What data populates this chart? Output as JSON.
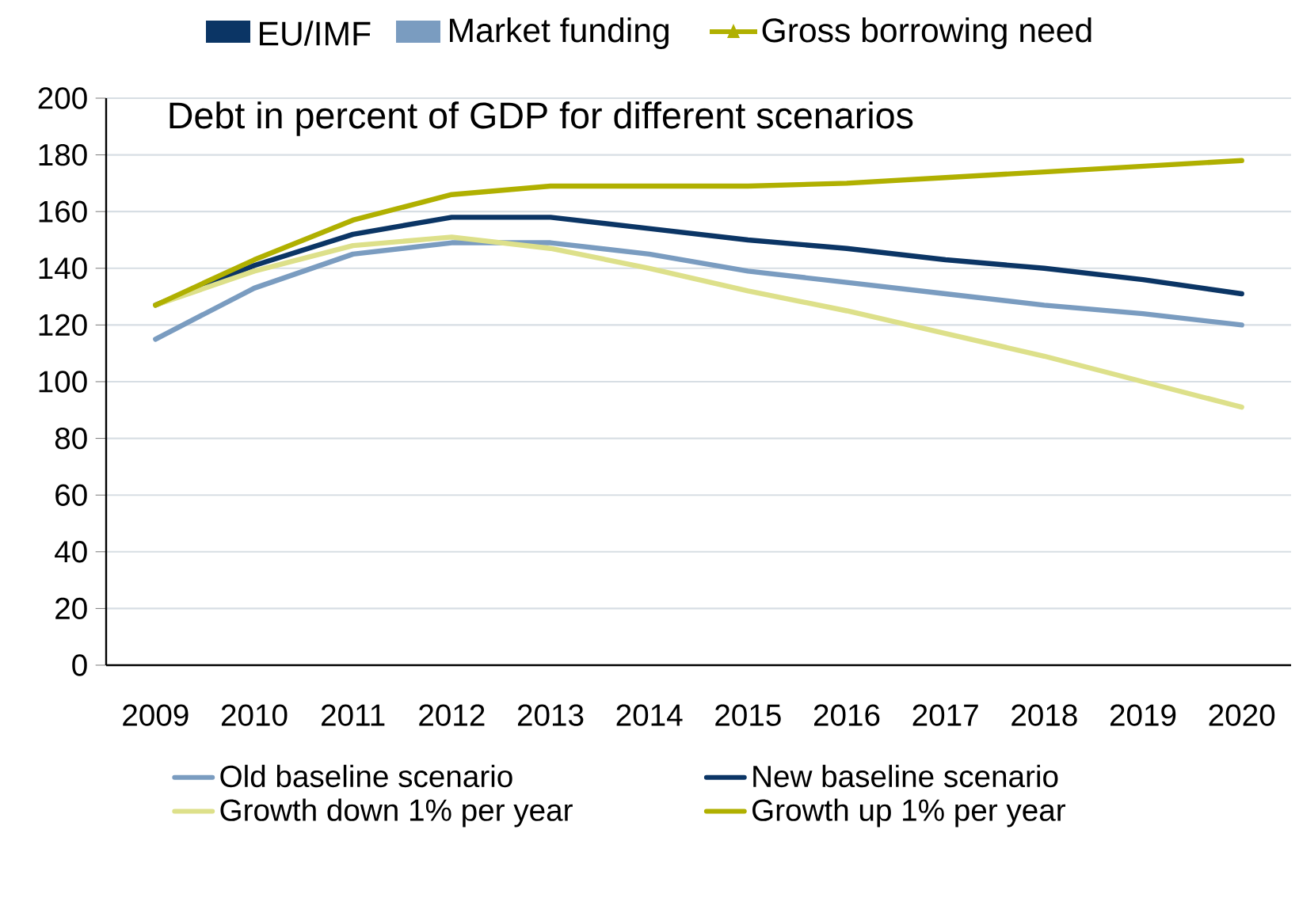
{
  "chart_data": {
    "type": "line",
    "title": "Debt in percent of GDP for different scenarios",
    "categories": [
      "2009",
      "2010",
      "2011",
      "2012",
      "2013",
      "2014",
      "2015",
      "2016",
      "2017",
      "2018",
      "2019",
      "2020"
    ],
    "series": [
      {
        "name": "Old baseline scenario",
        "color": "#7a9cc0",
        "values": [
          115,
          133,
          145,
          149,
          149,
          145,
          139,
          135,
          131,
          127,
          124,
          120
        ]
      },
      {
        "name": "New baseline scenario",
        "color": "#0b3565",
        "values": [
          127,
          141,
          152,
          158,
          158,
          154,
          150,
          147,
          143,
          140,
          136,
          131
        ]
      },
      {
        "name": "Growth down 1% per year",
        "color": "#dde08a",
        "values": [
          127,
          139,
          148,
          151,
          147,
          140,
          132,
          125,
          117,
          109,
          100,
          91
        ]
      },
      {
        "name": "Growth up 1% per year",
        "color": "#b0b000",
        "values": [
          127,
          143,
          157,
          166,
          169,
          169,
          169,
          170,
          172,
          174,
          176,
          178
        ]
      }
    ],
    "ylim": [
      0,
      200
    ],
    "yticks": [
      0,
      20,
      40,
      60,
      80,
      100,
      120,
      140,
      160,
      180,
      200
    ],
    "grid": "y",
    "legend": "bottom",
    "marker": "none",
    "line_style": "solid",
    "annotations": [
      "EU/IMF",
      "Market funding",
      "Gross borrowing need"
    ]
  }
}
